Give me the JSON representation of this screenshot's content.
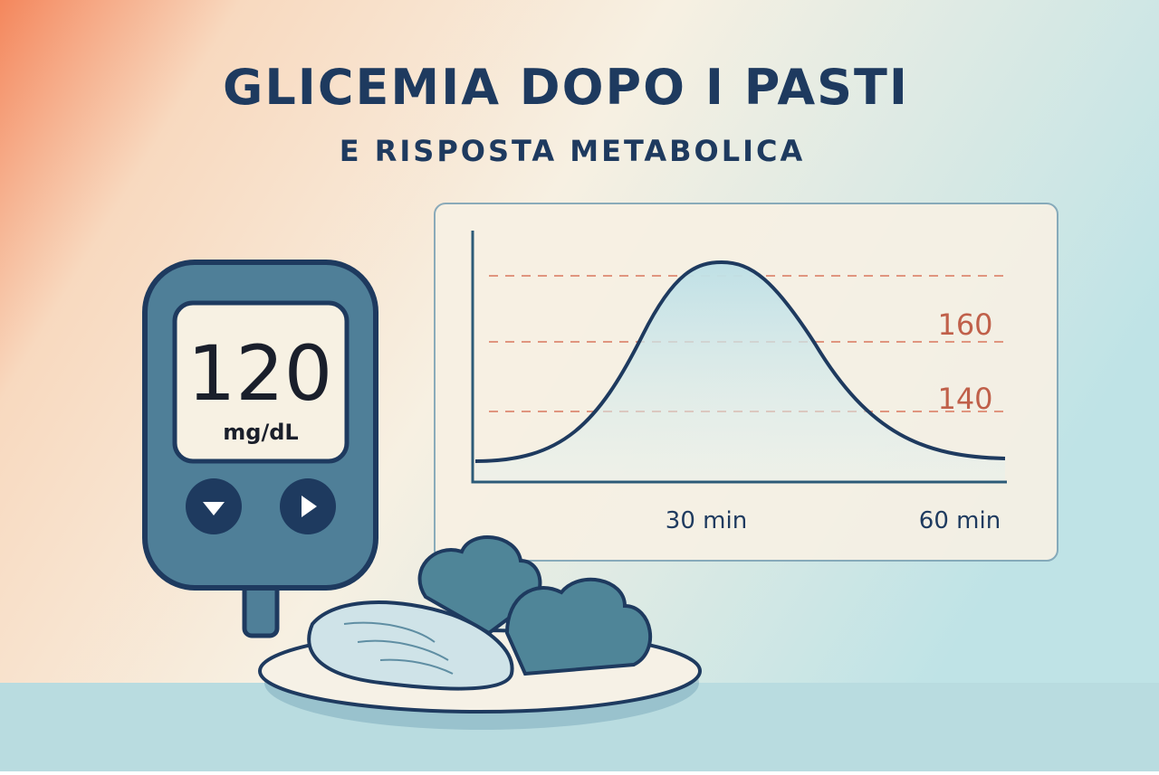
{
  "header": {
    "title": "GLICEMIA DOPO I PASTI",
    "subtitle": "E RISPOSTA METABOLICA"
  },
  "meter": {
    "reading": "120",
    "unit": "mg/dL"
  },
  "graph": {
    "level_labels": [
      "160",
      "140"
    ],
    "time_labels": [
      "30 min",
      "60 min"
    ]
  }
}
